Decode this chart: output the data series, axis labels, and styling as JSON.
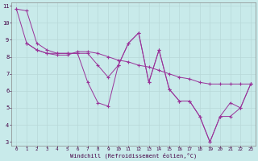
{
  "xlabel": "Windchill (Refroidissement éolien,°C)",
  "background_color": "#c8eaea",
  "grid_color": "#b8d8d8",
  "line_color": "#993399",
  "xlim": [
    -0.5,
    23.5
  ],
  "ylim": [
    2.8,
    11.2
  ],
  "xticks": [
    0,
    1,
    2,
    3,
    4,
    5,
    6,
    7,
    8,
    9,
    10,
    11,
    12,
    13,
    14,
    15,
    16,
    17,
    18,
    19,
    20,
    21,
    22,
    23
  ],
  "yticks": [
    3,
    4,
    5,
    6,
    7,
    8,
    9,
    10,
    11
  ],
  "series": [
    {
      "x": [
        0,
        1,
        2,
        3,
        4,
        5,
        6,
        7,
        8,
        9,
        10,
        11,
        12,
        13,
        14,
        15,
        16,
        17,
        18,
        19,
        20,
        21,
        22,
        23
      ],
      "y": [
        10.8,
        10.7,
        8.8,
        8.4,
        8.2,
        8.2,
        8.2,
        6.5,
        5.3,
        5.1,
        7.5,
        8.8,
        9.4,
        6.5,
        8.4,
        6.1,
        5.4,
        5.4,
        4.5,
        3.0,
        4.5,
        5.3,
        5.0,
        6.4
      ]
    },
    {
      "x": [
        0,
        1,
        2,
        3,
        4,
        5,
        6,
        7,
        8,
        9,
        10,
        11,
        12,
        13,
        14,
        15,
        16,
        17,
        18,
        19,
        20,
        21,
        22,
        23
      ],
      "y": [
        10.8,
        8.8,
        8.4,
        8.2,
        8.1,
        8.1,
        8.3,
        8.3,
        8.2,
        8.0,
        7.8,
        7.7,
        7.5,
        7.4,
        7.2,
        7.0,
        6.8,
        6.7,
        6.5,
        6.4,
        6.4,
        6.4,
        6.4,
        6.4
      ]
    },
    {
      "x": [
        1,
        2,
        3,
        4,
        5,
        6,
        7,
        8,
        9,
        10,
        11,
        12,
        13,
        14,
        15,
        16,
        17,
        18,
        19,
        20,
        21,
        22,
        23
      ],
      "y": [
        8.8,
        8.4,
        8.2,
        8.2,
        8.2,
        8.2,
        8.2,
        7.5,
        6.8,
        7.5,
        8.8,
        9.4,
        6.5,
        8.4,
        6.1,
        5.4,
        5.4,
        4.5,
        3.0,
        4.5,
        4.5,
        5.0,
        6.4
      ]
    }
  ]
}
